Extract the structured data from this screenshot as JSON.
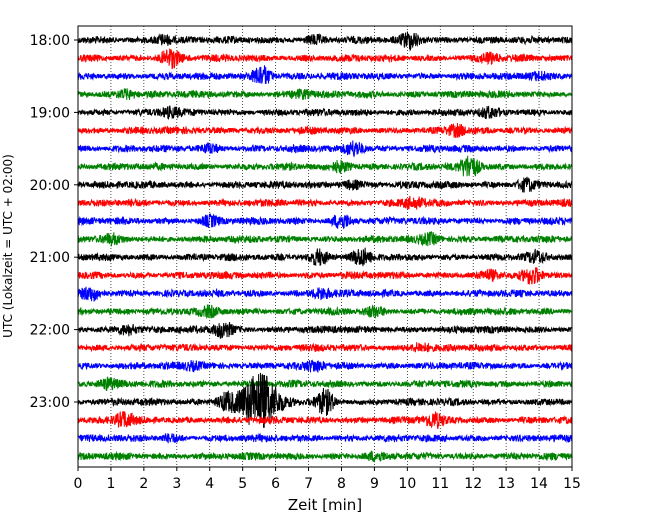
{
  "chart_data": {
    "type": "line",
    "title": "",
    "xlabel": "Zeit  [min]",
    "ylabel": "UTC (Lokalzeit = UTC + 02:00)",
    "xlim": [
      0,
      15
    ],
    "x_ticks": [
      0,
      1,
      2,
      3,
      4,
      5,
      6,
      7,
      8,
      9,
      10,
      11,
      12,
      13,
      14,
      15
    ],
    "x_tick_labels": [
      "0",
      "1",
      "2",
      "3",
      "4",
      "5",
      "6",
      "7",
      "8",
      "9",
      "10",
      "11",
      "12",
      "13",
      "14",
      "15"
    ],
    "y_tick_labels": [
      "18:00",
      "19:00",
      "20:00",
      "21:00",
      "22:00",
      "23:00"
    ],
    "grid": "vertical-dotted",
    "row_interval_minutes": 15,
    "row_colors": [
      "#000000",
      "#ff0000",
      "#0000ff",
      "#008000"
    ],
    "rows": [
      {
        "time": "18:00",
        "color": "#000000",
        "bursts": [
          {
            "x": 2.6,
            "amp": 0.35
          },
          {
            "x": 7.2,
            "amp": 0.25
          },
          {
            "x": 10.1,
            "amp": 0.55
          }
        ]
      },
      {
        "time": "18:15",
        "color": "#ff0000",
        "bursts": [
          {
            "x": 2.8,
            "amp": 0.6
          },
          {
            "x": 12.5,
            "amp": 0.3
          }
        ]
      },
      {
        "time": "18:30",
        "color": "#0000ff",
        "bursts": [
          {
            "x": 5.6,
            "amp": 0.7
          },
          {
            "x": 14.0,
            "amp": 0.25
          }
        ]
      },
      {
        "time": "18:45",
        "color": "#008000",
        "bursts": [
          {
            "x": 1.5,
            "amp": 0.3
          },
          {
            "x": 6.8,
            "amp": 0.25
          }
        ]
      },
      {
        "time": "19:00",
        "color": "#000000",
        "bursts": [
          {
            "x": 2.8,
            "amp": 0.3
          },
          {
            "x": 12.5,
            "amp": 0.25
          }
        ]
      },
      {
        "time": "19:15",
        "color": "#ff0000",
        "bursts": [
          {
            "x": 11.5,
            "amp": 0.35
          }
        ]
      },
      {
        "time": "19:30",
        "color": "#0000ff",
        "bursts": [
          {
            "x": 8.4,
            "amp": 0.5
          },
          {
            "x": 4.0,
            "amp": 0.25
          }
        ]
      },
      {
        "time": "19:45",
        "color": "#008000",
        "bursts": [
          {
            "x": 11.9,
            "amp": 0.75
          },
          {
            "x": 8.0,
            "amp": 0.35
          }
        ]
      },
      {
        "time": "20:00",
        "color": "#000000",
        "bursts": [
          {
            "x": 13.6,
            "amp": 0.4
          },
          {
            "x": 8.3,
            "amp": 0.25
          }
        ]
      },
      {
        "time": "20:15",
        "color": "#ff0000",
        "bursts": [
          {
            "x": 10.2,
            "amp": 0.35
          }
        ]
      },
      {
        "time": "20:30",
        "color": "#0000ff",
        "bursts": [
          {
            "x": 8.0,
            "amp": 0.45
          },
          {
            "x": 4.0,
            "amp": 0.3
          }
        ]
      },
      {
        "time": "20:45",
        "color": "#008000",
        "bursts": [
          {
            "x": 10.7,
            "amp": 0.35
          },
          {
            "x": 1.0,
            "amp": 0.25
          }
        ]
      },
      {
        "time": "21:00",
        "color": "#000000",
        "bursts": [
          {
            "x": 7.3,
            "amp": 0.5
          },
          {
            "x": 8.6,
            "amp": 0.5
          },
          {
            "x": 13.9,
            "amp": 0.3
          }
        ]
      },
      {
        "time": "21:15",
        "color": "#ff0000",
        "bursts": [
          {
            "x": 13.8,
            "amp": 0.5
          },
          {
            "x": 12.5,
            "amp": 0.25
          }
        ]
      },
      {
        "time": "21:30",
        "color": "#0000ff",
        "bursts": [
          {
            "x": 0.4,
            "amp": 0.4
          },
          {
            "x": 7.4,
            "amp": 0.35
          }
        ]
      },
      {
        "time": "21:45",
        "color": "#008000",
        "bursts": [
          {
            "x": 4.0,
            "amp": 0.25
          },
          {
            "x": 9.0,
            "amp": 0.25
          }
        ]
      },
      {
        "time": "22:00",
        "color": "#000000",
        "bursts": [
          {
            "x": 4.4,
            "amp": 0.55
          },
          {
            "x": 1.5,
            "amp": 0.35
          }
        ]
      },
      {
        "time": "22:15",
        "color": "#ff0000",
        "bursts": [
          {
            "x": 10.4,
            "amp": 0.3
          }
        ]
      },
      {
        "time": "22:30",
        "color": "#0000ff",
        "bursts": [
          {
            "x": 7.2,
            "amp": 0.3
          },
          {
            "x": 3.5,
            "amp": 0.25
          }
        ]
      },
      {
        "time": "22:45",
        "color": "#008000",
        "bursts": [
          {
            "x": 0.9,
            "amp": 0.35
          }
        ]
      },
      {
        "time": "23:00",
        "color": "#000000",
        "bursts": [
          {
            "x": 5.5,
            "amp": 2.1
          },
          {
            "x": 7.5,
            "amp": 0.8
          },
          {
            "x": 4.5,
            "amp": 0.6
          }
        ]
      },
      {
        "time": "23:15",
        "color": "#ff0000",
        "bursts": [
          {
            "x": 1.4,
            "amp": 0.5
          },
          {
            "x": 10.8,
            "amp": 0.45
          }
        ]
      },
      {
        "time": "23:30",
        "color": "#0000ff",
        "bursts": [
          {
            "x": 2.8,
            "amp": 0.2
          }
        ]
      },
      {
        "time": "23:45",
        "color": "#008000",
        "bursts": [
          {
            "x": 9.0,
            "amp": 0.2
          }
        ]
      }
    ]
  }
}
